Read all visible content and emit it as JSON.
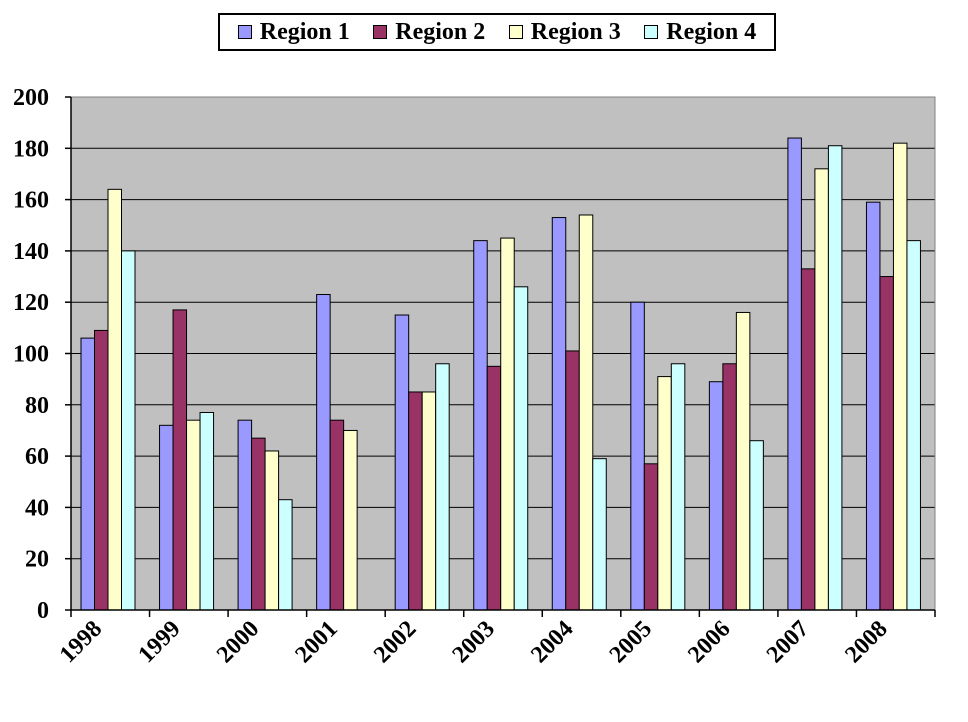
{
  "chart_data": {
    "type": "bar",
    "title": "",
    "xlabel": "",
    "ylabel": "",
    "categories": [
      "1998",
      "1999",
      "2000",
      "2001",
      "2002",
      "2003",
      "2004",
      "2005",
      "2006",
      "2007",
      "2008"
    ],
    "series": [
      {
        "name": "Region 1",
        "color": "#9999ff",
        "values": [
          106,
          72,
          74,
          123,
          115,
          144,
          153,
          120,
          89,
          184,
          159
        ]
      },
      {
        "name": "Region 2",
        "color": "#993366",
        "values": [
          109,
          117,
          67,
          74,
          85,
          95,
          101,
          57,
          96,
          133,
          130
        ]
      },
      {
        "name": "Region 3",
        "color": "#ffffcc",
        "values": [
          164,
          74,
          62,
          70,
          85,
          145,
          154,
          91,
          116,
          172,
          182
        ]
      },
      {
        "name": "Region 4",
        "color": "#ccffff",
        "values": [
          140,
          77,
          43,
          null,
          96,
          126,
          59,
          96,
          66,
          181,
          144
        ]
      }
    ],
    "ylim": [
      0,
      200
    ],
    "yticks": [
      0,
      20,
      40,
      60,
      80,
      100,
      120,
      140,
      160,
      180,
      200
    ],
    "grid": true,
    "plot_background": "#c0c0c0",
    "legend_position": "top"
  }
}
